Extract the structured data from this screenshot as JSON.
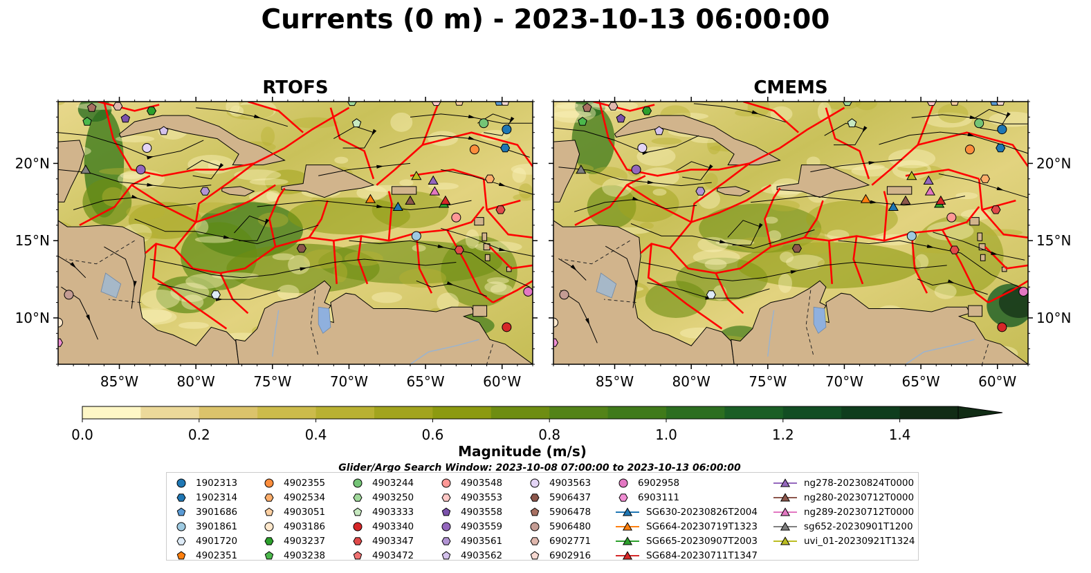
{
  "title": "Currents (0 m) - 2023-10-13 06:00:00",
  "panels": [
    {
      "id": "left",
      "title": "RTOFS"
    },
    {
      "id": "right",
      "title": "CMEMS"
    }
  ],
  "map": {
    "lon_range": [
      -89,
      -58
    ],
    "lat_range": [
      7,
      24
    ],
    "lon_ticks": [
      "85°W",
      "80°W",
      "75°W",
      "70°W",
      "65°W",
      "60°W"
    ],
    "lat_ticks": [
      "20°N",
      "15°N",
      "10°N"
    ],
    "land_color": "#d1b48c",
    "boundary_color": "#ff0000"
  },
  "colorbar": {
    "label": "Magnitude (m/s)",
    "ticks": [
      "0.0",
      "0.2",
      "0.4",
      "0.6",
      "0.8",
      "1.0",
      "1.2",
      "1.4"
    ],
    "min": 0.0,
    "max": 1.5,
    "extend": "max",
    "colors": [
      "#fef7c6",
      "#ecd99a",
      "#dbc36b",
      "#ccbb4b",
      "#b9b132",
      "#a2a41e",
      "#8c9a10",
      "#6e8d12",
      "#538318",
      "#3f7a1a",
      "#2c6e20",
      "#1a5e25",
      "#124d23",
      "#0f3d1d",
      "#112c15"
    ]
  },
  "search_window": "Glider/Argo Search Window: 2023-10-08 07:00:00 to 2023-10-13 06:00:00",
  "legend": {
    "columns": [
      [
        {
          "label": "1902313",
          "marker": "circle",
          "color": "#1f77b4"
        },
        {
          "label": "1902314",
          "marker": "hexagon",
          "color": "#1f77b4"
        },
        {
          "label": "3901686",
          "marker": "pentagon",
          "color": "#5a9bd5"
        },
        {
          "label": "3901861",
          "marker": "circle",
          "color": "#9ecae1"
        },
        {
          "label": "4901720",
          "marker": "hexagon",
          "color": "#deebf7"
        },
        {
          "label": "4902351",
          "marker": "pentagon",
          "color": "#ff7f0e"
        }
      ],
      [
        {
          "label": "4902355",
          "marker": "circle",
          "color": "#fd8d3c"
        },
        {
          "label": "4902534",
          "marker": "hexagon",
          "color": "#fdae6b"
        },
        {
          "label": "4903051",
          "marker": "pentagon",
          "color": "#fdd0a2"
        },
        {
          "label": "4903186",
          "marker": "circle",
          "color": "#ffe8cc"
        },
        {
          "label": "4903237",
          "marker": "hexagon",
          "color": "#2ca02c"
        },
        {
          "label": "4903238",
          "marker": "pentagon",
          "color": "#4cb84c"
        }
      ],
      [
        {
          "label": "4903244",
          "marker": "circle",
          "color": "#74c476"
        },
        {
          "label": "4903250",
          "marker": "hexagon",
          "color": "#a1d99b"
        },
        {
          "label": "4903333",
          "marker": "pentagon",
          "color": "#c7e9c0"
        },
        {
          "label": "4903340",
          "marker": "circle",
          "color": "#d62728"
        },
        {
          "label": "4903347",
          "marker": "hexagon",
          "color": "#e04a4a"
        },
        {
          "label": "4903472",
          "marker": "pentagon",
          "color": "#f07272"
        }
      ],
      [
        {
          "label": "4903548",
          "marker": "circle",
          "color": "#ff9896"
        },
        {
          "label": "4903553",
          "marker": "hexagon",
          "color": "#ffc8c6"
        },
        {
          "label": "4903558",
          "marker": "pentagon",
          "color": "#7b52ab"
        },
        {
          "label": "4903559",
          "marker": "circle",
          "color": "#9467bd"
        },
        {
          "label": "4903561",
          "marker": "hexagon",
          "color": "#b294d4"
        },
        {
          "label": "4903562",
          "marker": "pentagon",
          "color": "#d4c2ec"
        }
      ],
      [
        {
          "label": "4903563",
          "marker": "circle",
          "color": "#e3d4f5"
        },
        {
          "label": "5906437",
          "marker": "hexagon",
          "color": "#8c564b"
        },
        {
          "label": "5906478",
          "marker": "pentagon",
          "color": "#a87062"
        },
        {
          "label": "5906480",
          "marker": "circle",
          "color": "#c49c94"
        },
        {
          "label": "6902771",
          "marker": "hexagon",
          "color": "#e0b8ae"
        },
        {
          "label": "6902916",
          "marker": "pentagon",
          "color": "#f7d9d2"
        }
      ],
      [
        {
          "label": "6902958",
          "marker": "circle",
          "color": "#e377c2"
        },
        {
          "label": "6903111",
          "marker": "hexagon",
          "color": "#f08ed3"
        },
        {
          "label": "SG630-20230826T2004",
          "marker": "triangle",
          "color": "#1f77b4"
        },
        {
          "label": "SG664-20230719T1323",
          "marker": "triangle",
          "color": "#ff7f0e"
        },
        {
          "label": "SG665-20230907T2003",
          "marker": "triangle",
          "color": "#2ca02c"
        },
        {
          "label": "SG684-20230711T1347",
          "marker": "triangle",
          "color": "#d62728"
        }
      ],
      [
        {
          "label": "ng278-20230824T0000",
          "marker": "triangle",
          "color": "#9467bd"
        },
        {
          "label": "ng280-20230712T0000",
          "marker": "triangle",
          "color": "#8c564b"
        },
        {
          "label": "ng289-20230712T0000",
          "marker": "triangle",
          "color": "#e377c2"
        },
        {
          "label": "sg652-20230901T1200",
          "marker": "triangle",
          "color": "#7f7f7f"
        },
        {
          "label": "uvi_01-20230921T1324",
          "marker": "triangle",
          "color": "#bcbd22"
        }
      ]
    ]
  }
}
